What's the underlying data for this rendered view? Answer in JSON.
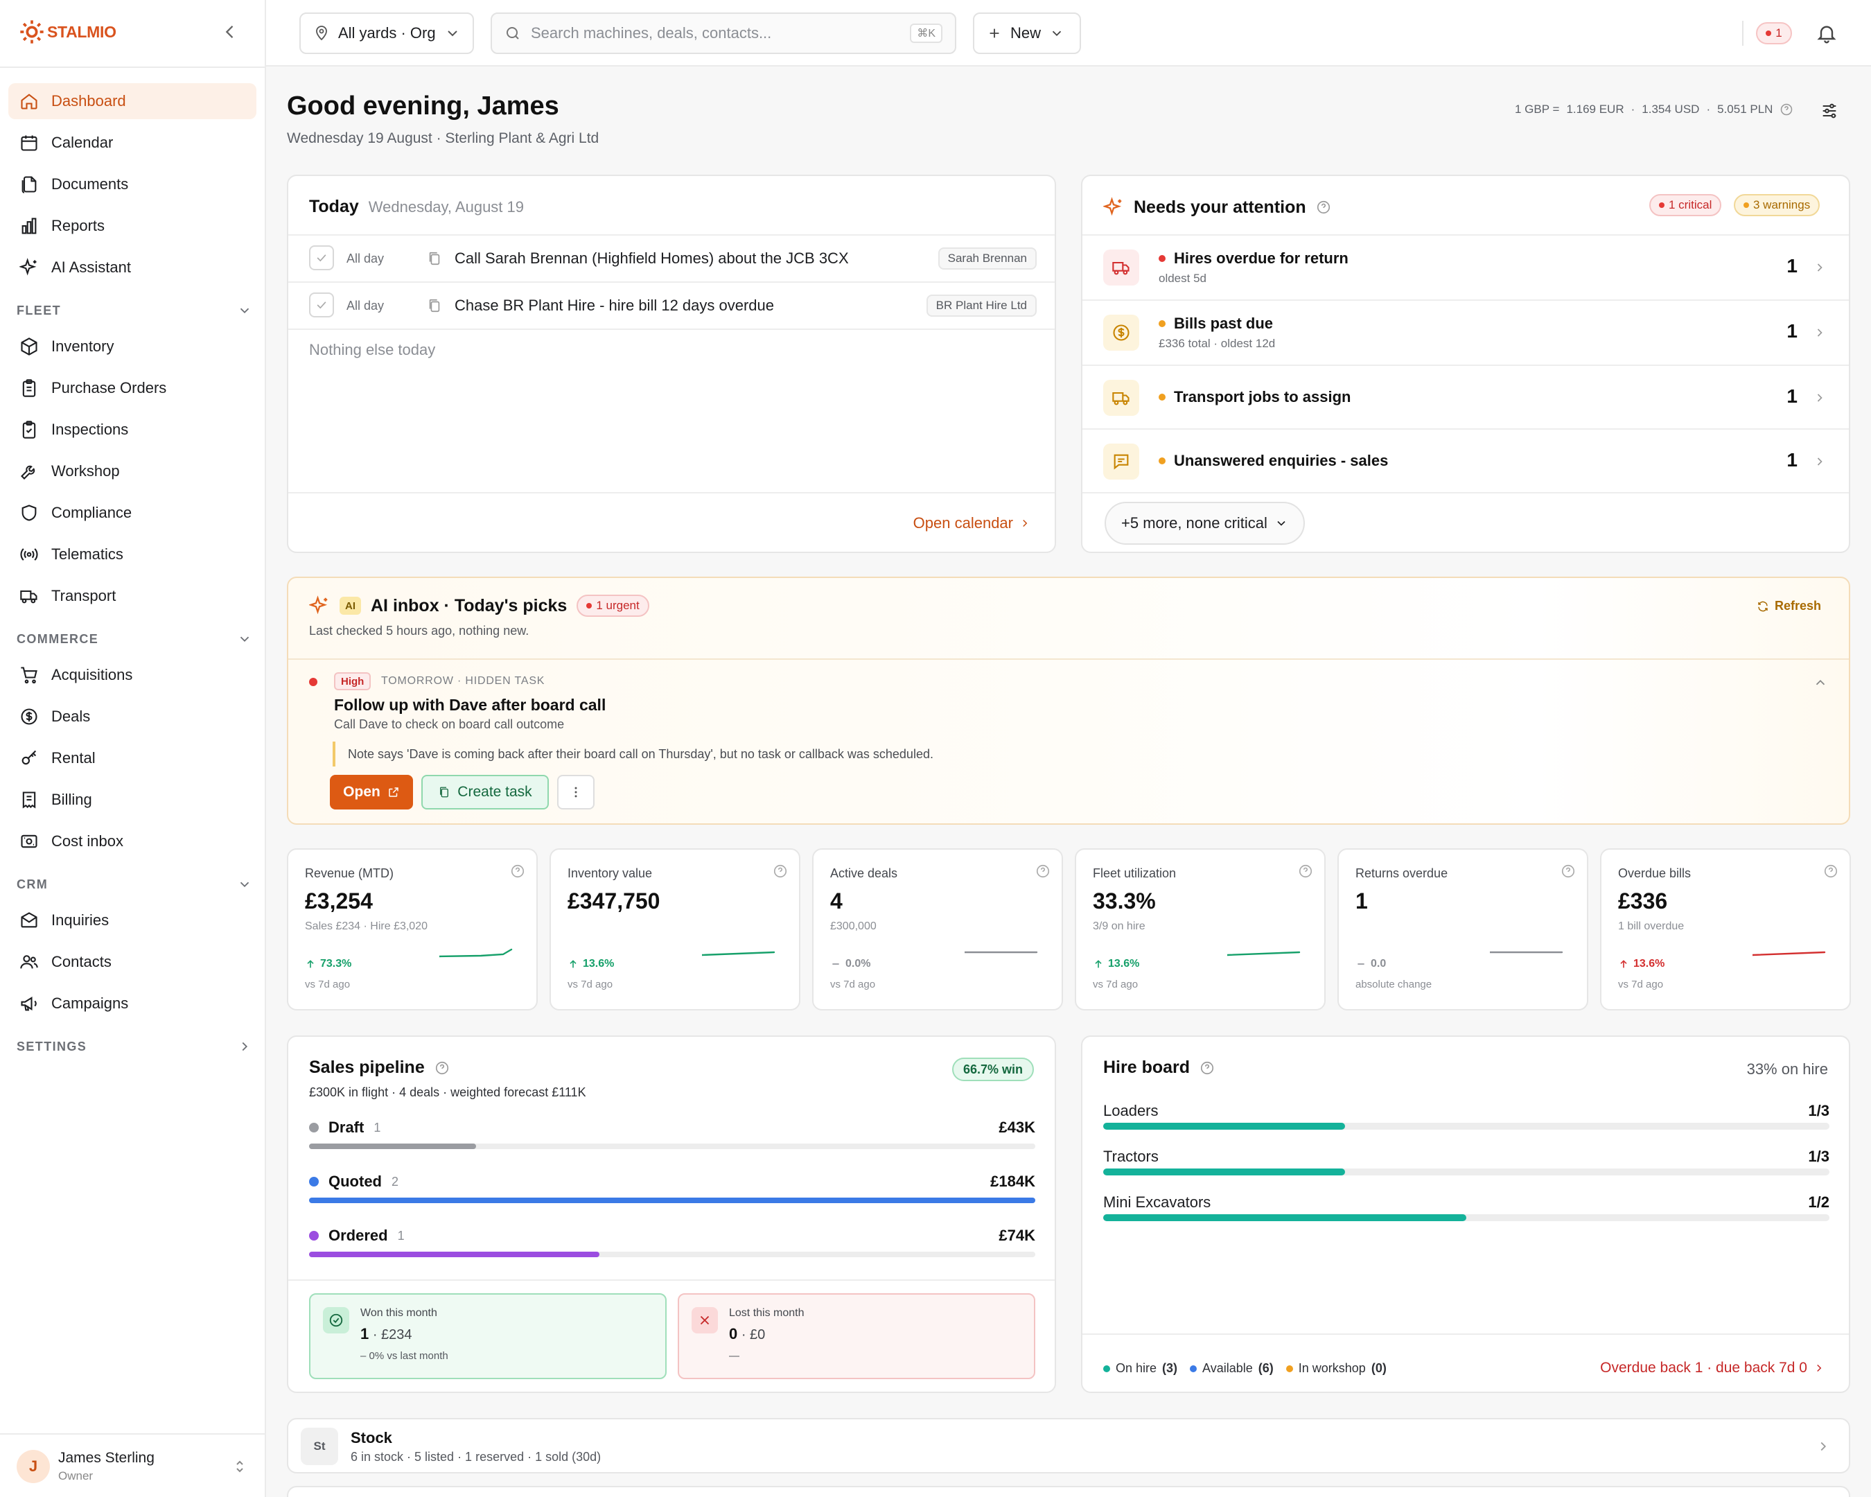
{
  "app": {
    "logo_text": "STALMIO",
    "brand_color": "#d9531e"
  },
  "sidebar": {
    "items": [
      {
        "label": "Dashboard",
        "icon": "home-icon",
        "active": true
      },
      {
        "label": "Calendar",
        "icon": "calendar-icon"
      },
      {
        "label": "Documents",
        "icon": "documents-icon"
      },
      {
        "label": "Reports",
        "icon": "bar-chart-icon"
      },
      {
        "label": "AI Assistant",
        "icon": "sparkles-icon"
      }
    ],
    "sections": [
      {
        "title": "FLEET",
        "items": [
          {
            "label": "Inventory",
            "icon": "box-icon"
          },
          {
            "label": "Purchase Orders",
            "icon": "clipboard-icon"
          },
          {
            "label": "Inspections",
            "icon": "checklist-icon"
          },
          {
            "label": "Workshop",
            "icon": "wrench-icon"
          },
          {
            "label": "Compliance",
            "icon": "shield-icon"
          },
          {
            "label": "Telematics",
            "icon": "signal-icon"
          },
          {
            "label": "Transport",
            "icon": "truck-icon"
          }
        ]
      },
      {
        "title": "COMMERCE",
        "items": [
          {
            "label": "Acquisitions",
            "icon": "cart-icon"
          },
          {
            "label": "Deals",
            "icon": "dollar-circle-icon"
          },
          {
            "label": "Rental",
            "icon": "key-icon"
          },
          {
            "label": "Billing",
            "icon": "receipt-icon"
          },
          {
            "label": "Cost inbox",
            "icon": "inbox-icon"
          }
        ]
      },
      {
        "title": "CRM",
        "items": [
          {
            "label": "Inquiries",
            "icon": "mail-icon"
          },
          {
            "label": "Contacts",
            "icon": "users-icon"
          },
          {
            "label": "Campaigns",
            "icon": "megaphone-icon"
          }
        ]
      },
      {
        "title": "SETTINGS",
        "items": []
      }
    ],
    "user": {
      "initial": "J",
      "name": "James Sterling",
      "role": "Owner"
    }
  },
  "topbar": {
    "yard_selector": "All yards · Org",
    "search_placeholder": "Search machines, deals, contacts...",
    "search_shortcut": "⌘K",
    "new_label": "New",
    "alert_count": "1"
  },
  "header": {
    "greeting": "Good evening, James",
    "subtitle": "Wednesday 19 August · Sterling Plant & Agri Ltd",
    "fx_prefix": "1 GBP =",
    "fx_eur": "1.169 EUR",
    "fx_usd": "1.354 USD",
    "fx_pln": "5.051 PLN",
    "fx_sep": "·"
  },
  "today": {
    "title": "Today",
    "date": "Wednesday, August 19",
    "tasks": [
      {
        "time": "All day",
        "text": "Call Sarah Brennan (Highfield Homes) about the JCB 3CX",
        "tag": "Sarah Brennan"
      },
      {
        "time": "All day",
        "text": "Chase BR Plant Hire - hire bill 12 days overdue",
        "tag": "BR Plant Hire Ltd"
      }
    ],
    "empty_text": "Nothing else today",
    "footer_link": "Open calendar"
  },
  "attention": {
    "title": "Needs your attention",
    "critical_badge": "1 critical",
    "warnings_badge": "3 warnings",
    "items": [
      {
        "title": "Hires overdue for return",
        "sub": "oldest 5d",
        "count": "1",
        "level": "critical",
        "icon": "truck-icon"
      },
      {
        "title": "Bills past due",
        "sub": "£336 total · oldest 12d",
        "count": "1",
        "level": "warning",
        "icon": "dollar-circle-icon"
      },
      {
        "title": "Transport jobs to assign",
        "sub": "",
        "count": "1",
        "level": "warning",
        "icon": "truck-icon"
      },
      {
        "title": "Unanswered enquiries - sales",
        "sub": "",
        "count": "1",
        "level": "warning",
        "icon": "message-icon"
      }
    ],
    "more_label": "+5 more, none critical"
  },
  "ai_inbox": {
    "chip": "AI",
    "title": "AI inbox · Today's picks",
    "urgent_badge": "1 urgent",
    "subtitle": "Last checked 5 hours ago, nothing new.",
    "refresh_label": "Refresh",
    "item": {
      "priority": "High",
      "when": "TOMORROW · HIDDEN TASK",
      "title": "Follow up with Dave after board call",
      "description": "Call Dave to check on board call outcome",
      "note": "Note says 'Dave is coming back after their board call on Thursday', but no task or callback was scheduled.",
      "open_label": "Open",
      "create_label": "Create task"
    }
  },
  "kpis": [
    {
      "label": "Revenue (MTD)",
      "value": "£3,254",
      "sub": "Sales £234 · Hire £3,020",
      "delta": "73.3%",
      "trend": "up",
      "vs": "vs 7d ago",
      "color": "#16a06a"
    },
    {
      "label": "Inventory value",
      "value": "£347,750",
      "sub": "",
      "delta": "13.6%",
      "trend": "up",
      "vs": "vs 7d ago",
      "color": "#16a06a"
    },
    {
      "label": "Active deals",
      "value": "4",
      "sub": "£300,000",
      "delta": "0.0%",
      "trend": "flat",
      "vs": "vs 7d ago",
      "color": "#8b8e94"
    },
    {
      "label": "Fleet utilization",
      "value": "33.3%",
      "sub": "3/9 on hire",
      "delta": "13.6%",
      "trend": "up",
      "vs": "vs 7d ago",
      "color": "#16a06a"
    },
    {
      "label": "Returns overdue",
      "value": "1",
      "sub": "",
      "delta": "0.0",
      "trend": "flat",
      "vs": "absolute change",
      "color": "#8b8e94"
    },
    {
      "label": "Overdue bills",
      "value": "£336",
      "sub": "1 bill overdue",
      "delta": "13.6%",
      "trend": "up-bad",
      "vs": "vs 7d ago",
      "color": "#d32f2f"
    }
  ],
  "pipeline": {
    "title": "Sales pipeline",
    "win_badge": "66.7% win",
    "summary": "£300K in flight · 4 deals · weighted forecast £111K",
    "stages": [
      {
        "name": "Draft",
        "count": "1",
        "value": "£43K",
        "fill": 0.23,
        "color": "#9a9ca1"
      },
      {
        "name": "Quoted",
        "count": "2",
        "value": "£184K",
        "fill": 1.0,
        "color": "#3b7ae6"
      },
      {
        "name": "Ordered",
        "count": "1",
        "value": "£74K",
        "fill": 0.4,
        "color": "#9b4de0"
      }
    ],
    "won": {
      "label": "Won this month",
      "count": "1",
      "amount": "· £234",
      "note": "– 0% vs last month"
    },
    "lost": {
      "label": "Lost this month",
      "count": "0",
      "amount": "· £0",
      "note": "—"
    }
  },
  "hire_board": {
    "title": "Hire board",
    "summary": "33% on hire",
    "rows": [
      {
        "name": "Loaders",
        "value": "1/3",
        "fill": 0.333
      },
      {
        "name": "Tractors",
        "value": "1/3",
        "fill": 0.333
      },
      {
        "name": "Mini Excavators",
        "value": "1/2",
        "fill": 0.5
      }
    ],
    "legend": [
      {
        "label": "On hire",
        "count": "(3)",
        "color": "#14b29a"
      },
      {
        "label": "Available",
        "count": "(6)",
        "color": "#3b7ae6"
      },
      {
        "label": "In workshop",
        "count": "(0)",
        "color": "#f0a020"
      }
    ],
    "overdue_link": "Overdue back 1 · due back 7d 0"
  },
  "stock": {
    "icon_text": "St",
    "title": "Stock",
    "summary": "6 in stock · 5 listed · 1 reserved · 1 sold (30d)"
  }
}
